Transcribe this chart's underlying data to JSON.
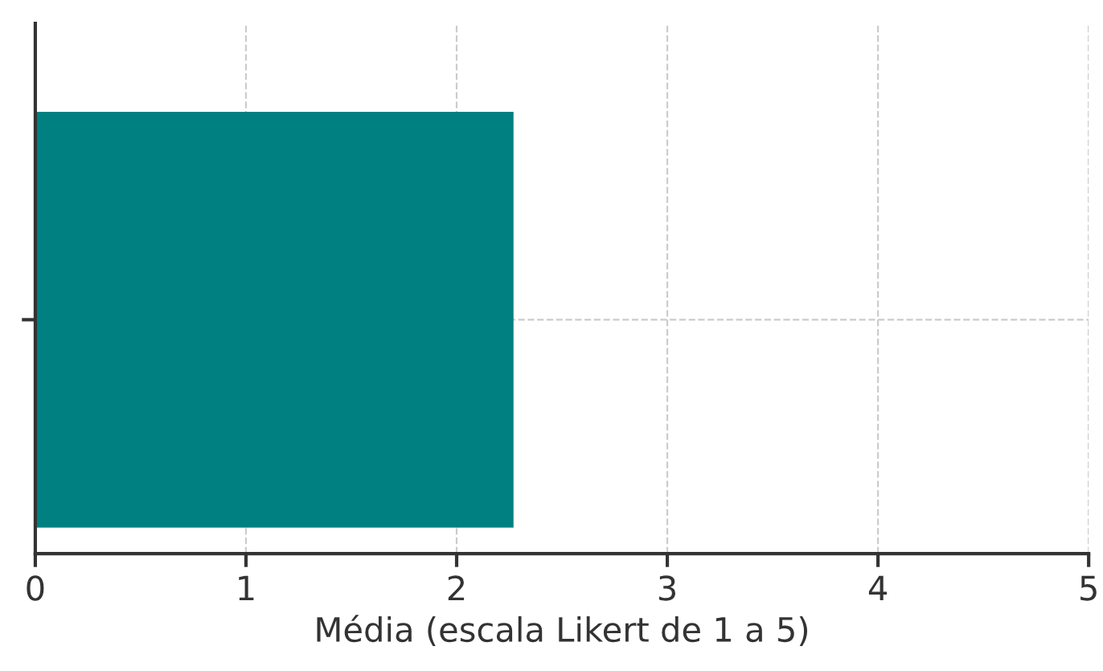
{
  "chart_data": {
    "type": "bar",
    "orientation": "horizontal",
    "categories": [
      null
    ],
    "values": [
      2.27
    ],
    "color": "#008080",
    "xlabel": "Média (escala Likert de 1 a 5)",
    "xlim": [
      0,
      5
    ],
    "xticks": [
      0,
      1,
      2,
      3,
      4,
      5
    ],
    "grid": true
  }
}
